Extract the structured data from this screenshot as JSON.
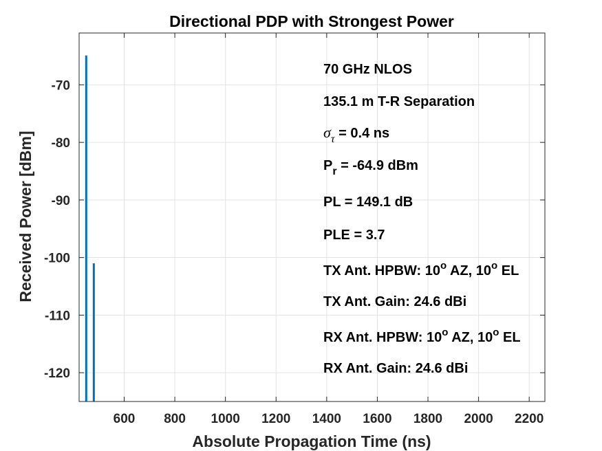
{
  "chart_data": {
    "type": "bar",
    "title": "Directional PDP with Strongest Power",
    "xlabel": "Absolute Propagation Time (ns)",
    "ylabel": "Received Power [dBm]",
    "xlim": [
      422,
      2262
    ],
    "ylim": [
      -125,
      -61
    ],
    "xticks": [
      600,
      800,
      1000,
      1200,
      1400,
      1600,
      1800,
      2000,
      2200
    ],
    "yticks": [
      -70,
      -80,
      -90,
      -100,
      -110,
      -120
    ],
    "grid": true,
    "series": [
      {
        "color": "#0072BD",
        "points": [
          {
            "x": 450,
            "y": -64.9
          },
          {
            "x": 480,
            "y": -101
          }
        ]
      }
    ],
    "annotations": {
      "freq": "70 GHz NLOS",
      "separation": "135.1 m T-R Separation",
      "sigma_symbol": "σ",
      "sigma_sub": "τ",
      "sigma_value": " = 0.4 ns",
      "pr_symbol": "P",
      "pr_sub": "r",
      "pr_value": " = -64.9 dBm",
      "pl": "PL = 149.1 dB",
      "ple": "PLE = 3.7",
      "tx_hpbw_prefix": "TX Ant. HPBW: 10",
      "tx_hpbw_mid": " AZ, 10",
      "tx_hpbw_suffix": " EL",
      "tx_gain": "TX Ant. Gain: 24.6 dBi",
      "rx_hpbw_prefix": "RX Ant. HPBW: 10",
      "rx_hpbw_mid": " AZ, 10",
      "rx_hpbw_suffix": " EL",
      "rx_gain": "RX Ant. Gain: 24.6 dBi",
      "degree_symbol": "o"
    }
  }
}
